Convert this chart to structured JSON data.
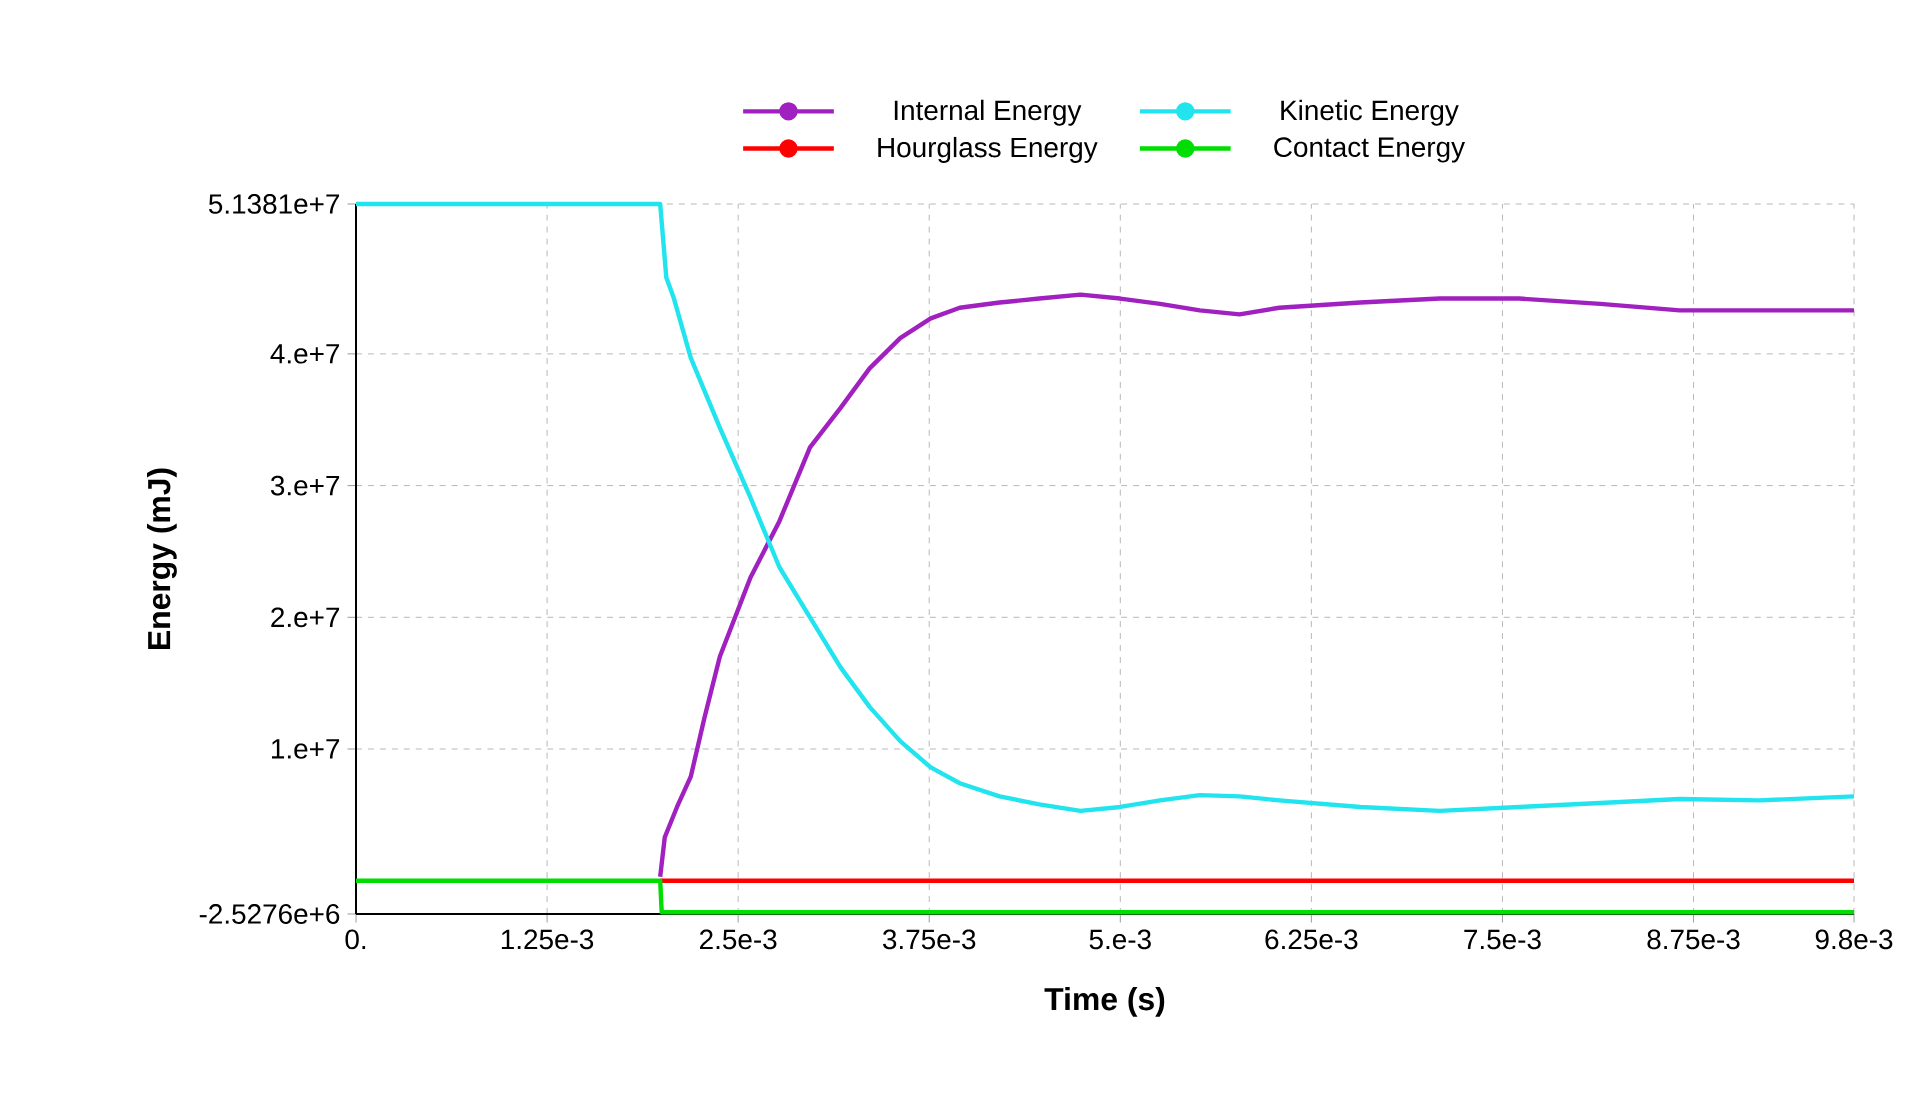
{
  "chart_data": {
    "type": "line",
    "xlabel": "Time (s)",
    "ylabel": "Energy (mJ)",
    "xlim": [
      0,
      0.0098
    ],
    "ylim": [
      -2527600,
      51381000
    ],
    "xticks": [
      {
        "value": 0,
        "label": "0."
      },
      {
        "value": 0.00125,
        "label": "1.25e-3"
      },
      {
        "value": 0.0025,
        "label": "2.5e-3"
      },
      {
        "value": 0.00375,
        "label": "3.75e-3"
      },
      {
        "value": 0.005,
        "label": "5.e-3"
      },
      {
        "value": 0.00625,
        "label": "6.25e-3"
      },
      {
        "value": 0.0075,
        "label": "7.5e-3"
      },
      {
        "value": 0.00875,
        "label": "8.75e-3"
      },
      {
        "value": 0.0098,
        "label": "9.8e-3"
      }
    ],
    "yticks": [
      {
        "value": -2527600,
        "label": "-2.5276e+6"
      },
      {
        "value": 10000000,
        "label": "1.e+7"
      },
      {
        "value": 20000000,
        "label": "2.e+7"
      },
      {
        "value": 30000000,
        "label": "3.e+7"
      },
      {
        "value": 40000000,
        "label": "4.e+7"
      },
      {
        "value": 51381000,
        "label": "5.1381e+7"
      }
    ],
    "grid": true,
    "legend": "top",
    "line_style": "solid",
    "series": [
      {
        "name": "Internal Energy",
        "color": "#a020c0",
        "x": [
          0.00199,
          0.00202,
          0.0021,
          0.00219,
          0.00228,
          0.00238,
          0.00258,
          0.00277,
          0.00297,
          0.00317,
          0.00336,
          0.00356,
          0.00376,
          0.00395,
          0.00421,
          0.00447,
          0.00474,
          0.005,
          0.00526,
          0.00552,
          0.00578,
          0.00604,
          0.00657,
          0.00709,
          0.00761,
          0.00814,
          0.00866,
          0.00918,
          0.0098
        ],
        "values": [
          300000,
          3300000,
          5600000,
          7900000,
          12400000,
          17000000,
          23000000,
          27300000,
          32900000,
          35900000,
          38900000,
          41200000,
          42700000,
          43500000,
          43900000,
          44200000,
          44500000,
          44200000,
          43800000,
          43300000,
          43000000,
          43500000,
          43900000,
          44200000,
          44200000,
          43800000,
          43300000,
          43300000,
          43300000
        ]
      },
      {
        "name": "Kinetic Energy",
        "color": "#22e4ee",
        "x": [
          0,
          0.00199,
          0.00203,
          0.00208,
          0.00219,
          0.00238,
          0.00258,
          0.00277,
          0.00297,
          0.00317,
          0.00336,
          0.00356,
          0.00376,
          0.00395,
          0.00421,
          0.00447,
          0.00474,
          0.005,
          0.00526,
          0.00552,
          0.00578,
          0.00604,
          0.00657,
          0.00709,
          0.00761,
          0.00814,
          0.00866,
          0.00918,
          0.0098
        ],
        "values": [
          51381000,
          51381000,
          45800000,
          44200000,
          39700000,
          34400000,
          29100000,
          23800000,
          20000000,
          16200000,
          13200000,
          10600000,
          8600000,
          7400000,
          6400000,
          5800000,
          5300000,
          5600000,
          6100000,
          6500000,
          6400000,
          6100000,
          5600000,
          5300000,
          5600000,
          5900000,
          6200000,
          6100000,
          6400000
        ]
      },
      {
        "name": "Hourglass Energy",
        "color": "#ff0000",
        "x": [
          0.00199,
          0.0098
        ],
        "values": [
          0,
          0
        ]
      },
      {
        "name": "Contact Energy",
        "color": "#00dd00",
        "x": [
          0,
          0.00199,
          0.002,
          0.0035,
          0.0098
        ],
        "values": [
          0,
          0,
          -2400000,
          -2400000,
          -2400000
        ]
      }
    ]
  }
}
